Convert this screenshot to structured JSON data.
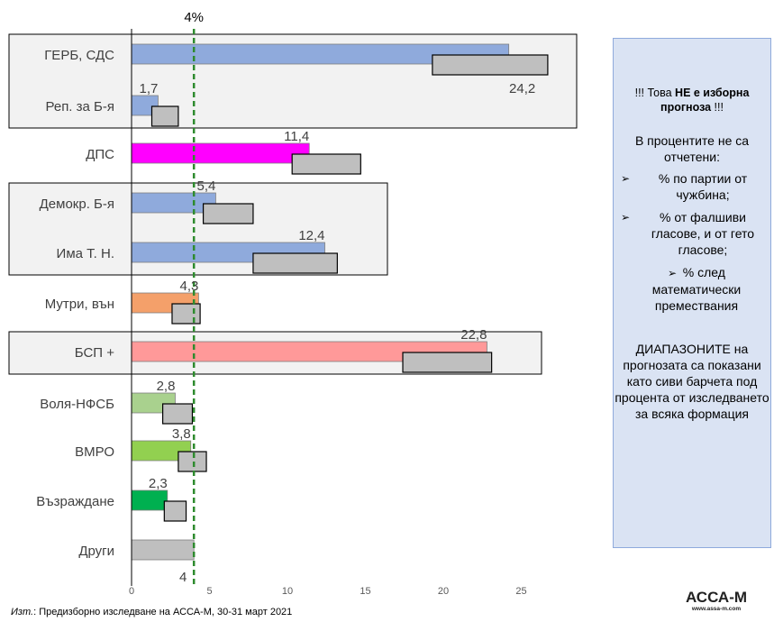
{
  "chart_data": {
    "type": "bar",
    "orientation": "horizontal",
    "xlim": [
      0,
      28
    ],
    "xticks": [
      0,
      5,
      10,
      15,
      20,
      25
    ],
    "threshold": {
      "value": 4,
      "label": "4%",
      "color": "#2e8b2e"
    },
    "categories": [
      "ГЕРБ, СДС",
      "Реп. за Б-я",
      "ДПС",
      "Демокр. Б-я",
      "Има Т. Н.",
      "Мутри, вън",
      "БСП +",
      "Воля-НФСБ",
      "ВМРО",
      "Възраждане",
      "Други"
    ],
    "values": [
      24.2,
      1.7,
      11.4,
      5.4,
      12.4,
      4.3,
      22.8,
      2.8,
      3.8,
      2.3,
      4
    ],
    "value_labels": [
      "24,2",
      "1,7",
      "11,4",
      "5,4",
      "12,4",
      "4,3",
      "22,8",
      "2,8",
      "3,8",
      "2,3",
      "4"
    ],
    "colors": [
      "#8faadc",
      "#8faadc",
      "#ff00ff",
      "#8faadc",
      "#8faadc",
      "#f4a06a",
      "#ff9999",
      "#a9d18e",
      "#92d050",
      "#00b050",
      "#bfbfbf"
    ],
    "ranges": [
      [
        19.3,
        26.7
      ],
      [
        1.3,
        3.0
      ],
      [
        10.3,
        14.7
      ],
      [
        4.6,
        7.8
      ],
      [
        7.8,
        13.2
      ],
      [
        2.6,
        4.4
      ],
      [
        17.4,
        23.1
      ],
      [
        2.0,
        3.9
      ],
      [
        3.0,
        4.8
      ],
      [
        2.1,
        3.5
      ],
      null
    ]
  },
  "note": {
    "warning_prefix": "!!! Това ",
    "warning_bold": "НЕ е изборна прогноза",
    "warning_suffix": " !!!",
    "intro": "В процентите не са отчетени:",
    "bullets": [
      "% по партии от чужбина;",
      "% от фалшиви гласове, и от гето гласове;",
      "% след математически премествания"
    ],
    "ranges_text": "ДИАПАЗОНИТЕ на прогнозата са показани като сиви барчета под процента от изследването за всяка формация"
  },
  "source": {
    "prefix": "Изт.",
    "text": ": Предизборно изследване на АССА-М, 30-31 март 2021"
  },
  "brand": {
    "name": "АССА-М",
    "url": "www.assa-m.com"
  }
}
